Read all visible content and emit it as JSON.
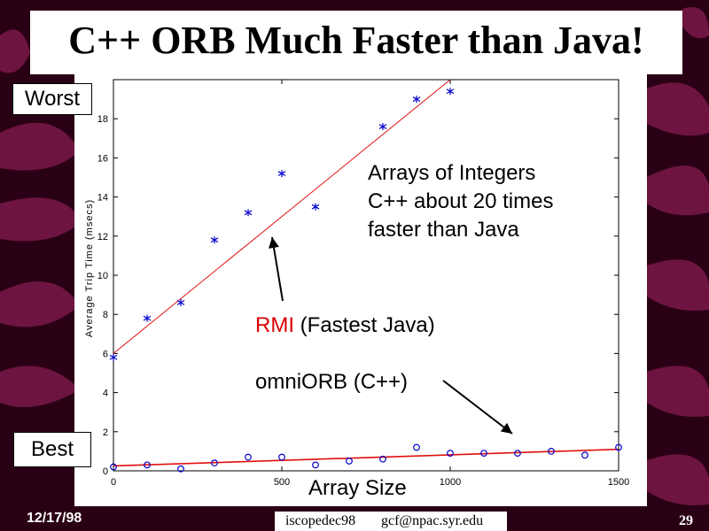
{
  "slide": {
    "title": "C++ ORB Much Faster than Java!",
    "worst_label": "Worst",
    "best_label": "Best",
    "annotation_lines": [
      "Arrays of Integers",
      "C++ about 20 times",
      "faster than Java"
    ],
    "rmi_highlight": "RMI",
    "rmi_rest": " (Fastest Java)",
    "omni_label": "omniORB (C++)",
    "x_title": "Array Size",
    "footer_date": "12/17/98",
    "footer_event": "iscopedec98",
    "footer_email": "gcf@npac.syr.edu",
    "page_number": "29"
  },
  "colors": {
    "background": "#2a0014",
    "stripe": "#7a1848",
    "fit_line": "#e01010",
    "rmi_text": "#d90000",
    "markers": "#0000cc"
  },
  "chart_data": {
    "type": "scatter",
    "ylabel": "Average Trip Time (msecs)",
    "xlabel": "Array Size",
    "xlim": [
      0,
      1500
    ],
    "ylim": [
      0,
      20
    ],
    "xticks": [
      0,
      500,
      1000,
      1500
    ],
    "yticks": [
      0,
      2,
      4,
      6,
      8,
      10,
      12,
      14,
      16,
      18
    ],
    "grid": false,
    "series": [
      {
        "name": "RMI (Fastest Java)",
        "marker": "asterisk",
        "x": [
          0,
          100,
          200,
          300,
          400,
          500,
          600,
          800,
          900,
          1000
        ],
        "y": [
          5.8,
          7.8,
          8.6,
          11.8,
          13.2,
          15.2,
          13.5,
          17.6,
          19.0,
          19.4
        ],
        "fit": {
          "x": [
            0,
            1000
          ],
          "y": [
            6.0,
            20.0
          ]
        }
      },
      {
        "name": "omniORB (C++)",
        "marker": "circle",
        "x": [
          0,
          100,
          200,
          300,
          400,
          500,
          600,
          700,
          800,
          900,
          1000,
          1100,
          1200,
          1300,
          1400,
          1500
        ],
        "y": [
          0.2,
          0.3,
          0.1,
          0.4,
          0.7,
          0.7,
          0.3,
          0.5,
          0.6,
          1.2,
          0.9,
          0.9,
          0.9,
          1.0,
          0.8,
          1.2
        ],
        "fit": {
          "x": [
            0,
            1500
          ],
          "y": [
            0.25,
            1.1
          ]
        }
      }
    ]
  }
}
